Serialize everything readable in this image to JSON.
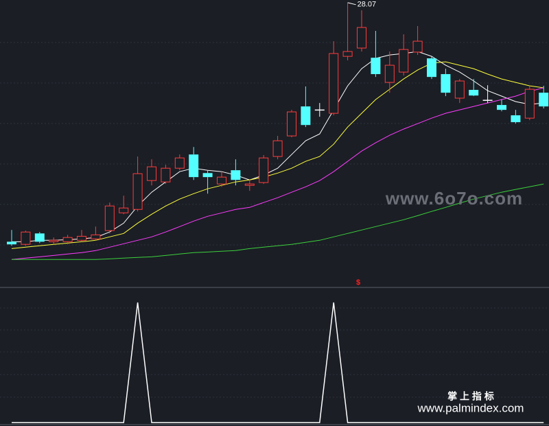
{
  "chart_data": [
    {
      "type": "candlestick",
      "open": [
        16.23,
        16.1,
        16.64,
        16.23,
        16.23,
        16.3,
        16.37,
        16.78,
        17.66,
        17.83,
        19.26,
        19.19,
        19.87,
        20.55,
        19.63,
        19.09,
        19.77,
        19.02,
        19.16,
        20.45,
        21.47,
        22.93,
        22.76,
        22.59,
        25.41,
        25.82,
        25.34,
        24.12,
        24.63,
        25.62,
        25.31,
        24.53,
        23.34,
        23.75,
        23.24,
        23.0,
        22.49,
        22.35,
        23.61
      ],
      "high": [
        16.81,
        16.78,
        16.71,
        16.44,
        16.57,
        16.81,
        16.98,
        18.17,
        18.51,
        20.45,
        20.31,
        20.04,
        20.55,
        20.92,
        19.77,
        19.7,
        20.31,
        19.29,
        20.52,
        21.47,
        22.76,
        23.92,
        23.1,
        26.16,
        28.07,
        27.69,
        26.67,
        25.65,
        26.5,
        26.91,
        25.41,
        24.8,
        24.29,
        24.29,
        23.98,
        23.27,
        22.76,
        23.95,
        23.95
      ],
      "low": [
        16.03,
        16.03,
        16.16,
        16.1,
        16.1,
        16.23,
        16.3,
        16.64,
        17.59,
        17.73,
        19.02,
        19.09,
        19.77,
        19.29,
        18.61,
        18.95,
        19.02,
        18.75,
        19.09,
        20.31,
        21.4,
        21.91,
        22.42,
        22.49,
        25.21,
        25.65,
        24.39,
        23.61,
        24.46,
        25.48,
        24.29,
        23.44,
        23.1,
        23.44,
        23.1,
        22.69,
        22.08,
        22.25,
        22.83
      ],
      "close": [
        16.1,
        16.71,
        16.23,
        16.3,
        16.44,
        16.5,
        16.57,
        18.0,
        17.9,
        19.6,
        19.94,
        19.87,
        20.38,
        19.43,
        19.43,
        19.43,
        19.29,
        19.09,
        20.38,
        21.23,
        22.66,
        22.01,
        22.76,
        25.55,
        25.65,
        26.84,
        24.53,
        24.97,
        25.75,
        26.16,
        24.39,
        23.61,
        24.19,
        23.47,
        23.24,
        22.76,
        22.15,
        23.78,
        22.93
      ],
      "up_color": "#ff3c3c",
      "down_color": "#54ffff",
      "flat_color": "#ffffff",
      "ylim": [
        14,
        28.2
      ],
      "lines": [
        {
          "color": "#ffffff",
          "values": [
            16.23,
            16.23,
            16.3,
            16.3,
            16.33,
            16.37,
            16.44,
            16.71,
            17.15,
            18.0,
            18.68,
            19.19,
            19.7,
            19.87,
            19.77,
            19.7,
            19.53,
            19.29,
            19.53,
            19.87,
            20.55,
            21.23,
            21.57,
            22.76,
            23.95,
            24.8,
            25.31,
            25.48,
            25.55,
            25.65,
            25.41,
            24.97,
            24.63,
            24.19,
            23.71,
            23.44,
            23.17,
            23.03,
            23.1
          ]
        },
        {
          "color": "#ffff3c",
          "values": [
            15.89,
            15.96,
            16.03,
            16.1,
            16.16,
            16.23,
            16.3,
            16.47,
            16.64,
            17.15,
            17.59,
            18.0,
            18.34,
            18.61,
            18.85,
            19.02,
            19.19,
            19.29,
            19.43,
            19.63,
            19.87,
            20.21,
            20.45,
            21.06,
            21.91,
            22.59,
            23.27,
            23.78,
            24.29,
            24.73,
            25.07,
            25.14,
            24.97,
            24.8,
            24.53,
            24.29,
            24.12,
            23.95,
            23.85
          ]
        },
        {
          "color": "#ff3cff",
          "values": [
            15.35,
            15.42,
            15.48,
            15.55,
            15.62,
            15.69,
            15.79,
            15.96,
            16.13,
            16.3,
            16.47,
            16.71,
            16.98,
            17.25,
            17.49,
            17.66,
            17.83,
            17.93,
            18.17,
            18.41,
            18.68,
            18.95,
            19.26,
            19.7,
            20.21,
            20.72,
            21.13,
            21.5,
            21.81,
            22.08,
            22.35,
            22.59,
            22.76,
            22.93,
            23.1,
            23.27,
            23.44,
            23.68,
            23.85
          ]
        },
        {
          "color": "#3cd23c",
          "values": [
            15.35,
            15.35,
            15.35,
            15.35,
            15.35,
            15.35,
            15.35,
            15.38,
            15.42,
            15.45,
            15.48,
            15.55,
            15.62,
            15.69,
            15.72,
            15.76,
            15.79,
            15.89,
            15.96,
            16.03,
            16.1,
            16.2,
            16.3,
            16.47,
            16.64,
            16.81,
            16.98,
            17.15,
            17.32,
            17.52,
            17.73,
            17.93,
            18.14,
            18.34,
            18.51,
            18.68,
            18.82,
            18.95,
            19.09
          ]
        }
      ],
      "annotation": "$",
      "annotation_color": "#ff2020"
    },
    {
      "type": "line",
      "color": "#ffffff",
      "ylim": [
        0,
        1
      ],
      "values": [
        0,
        0,
        0,
        0,
        0,
        0,
        0,
        0,
        0,
        1,
        0,
        0,
        0,
        0,
        0,
        0,
        0,
        0,
        0,
        0,
        0,
        0,
        0,
        1,
        0,
        0,
        0,
        0,
        0,
        0,
        0,
        0,
        0,
        0,
        0,
        0,
        0,
        0,
        0
      ]
    }
  ],
  "watermarks": [
    "www.6o7o.com",
    "掌 上 指 标",
    "www.palmindex.com"
  ]
}
